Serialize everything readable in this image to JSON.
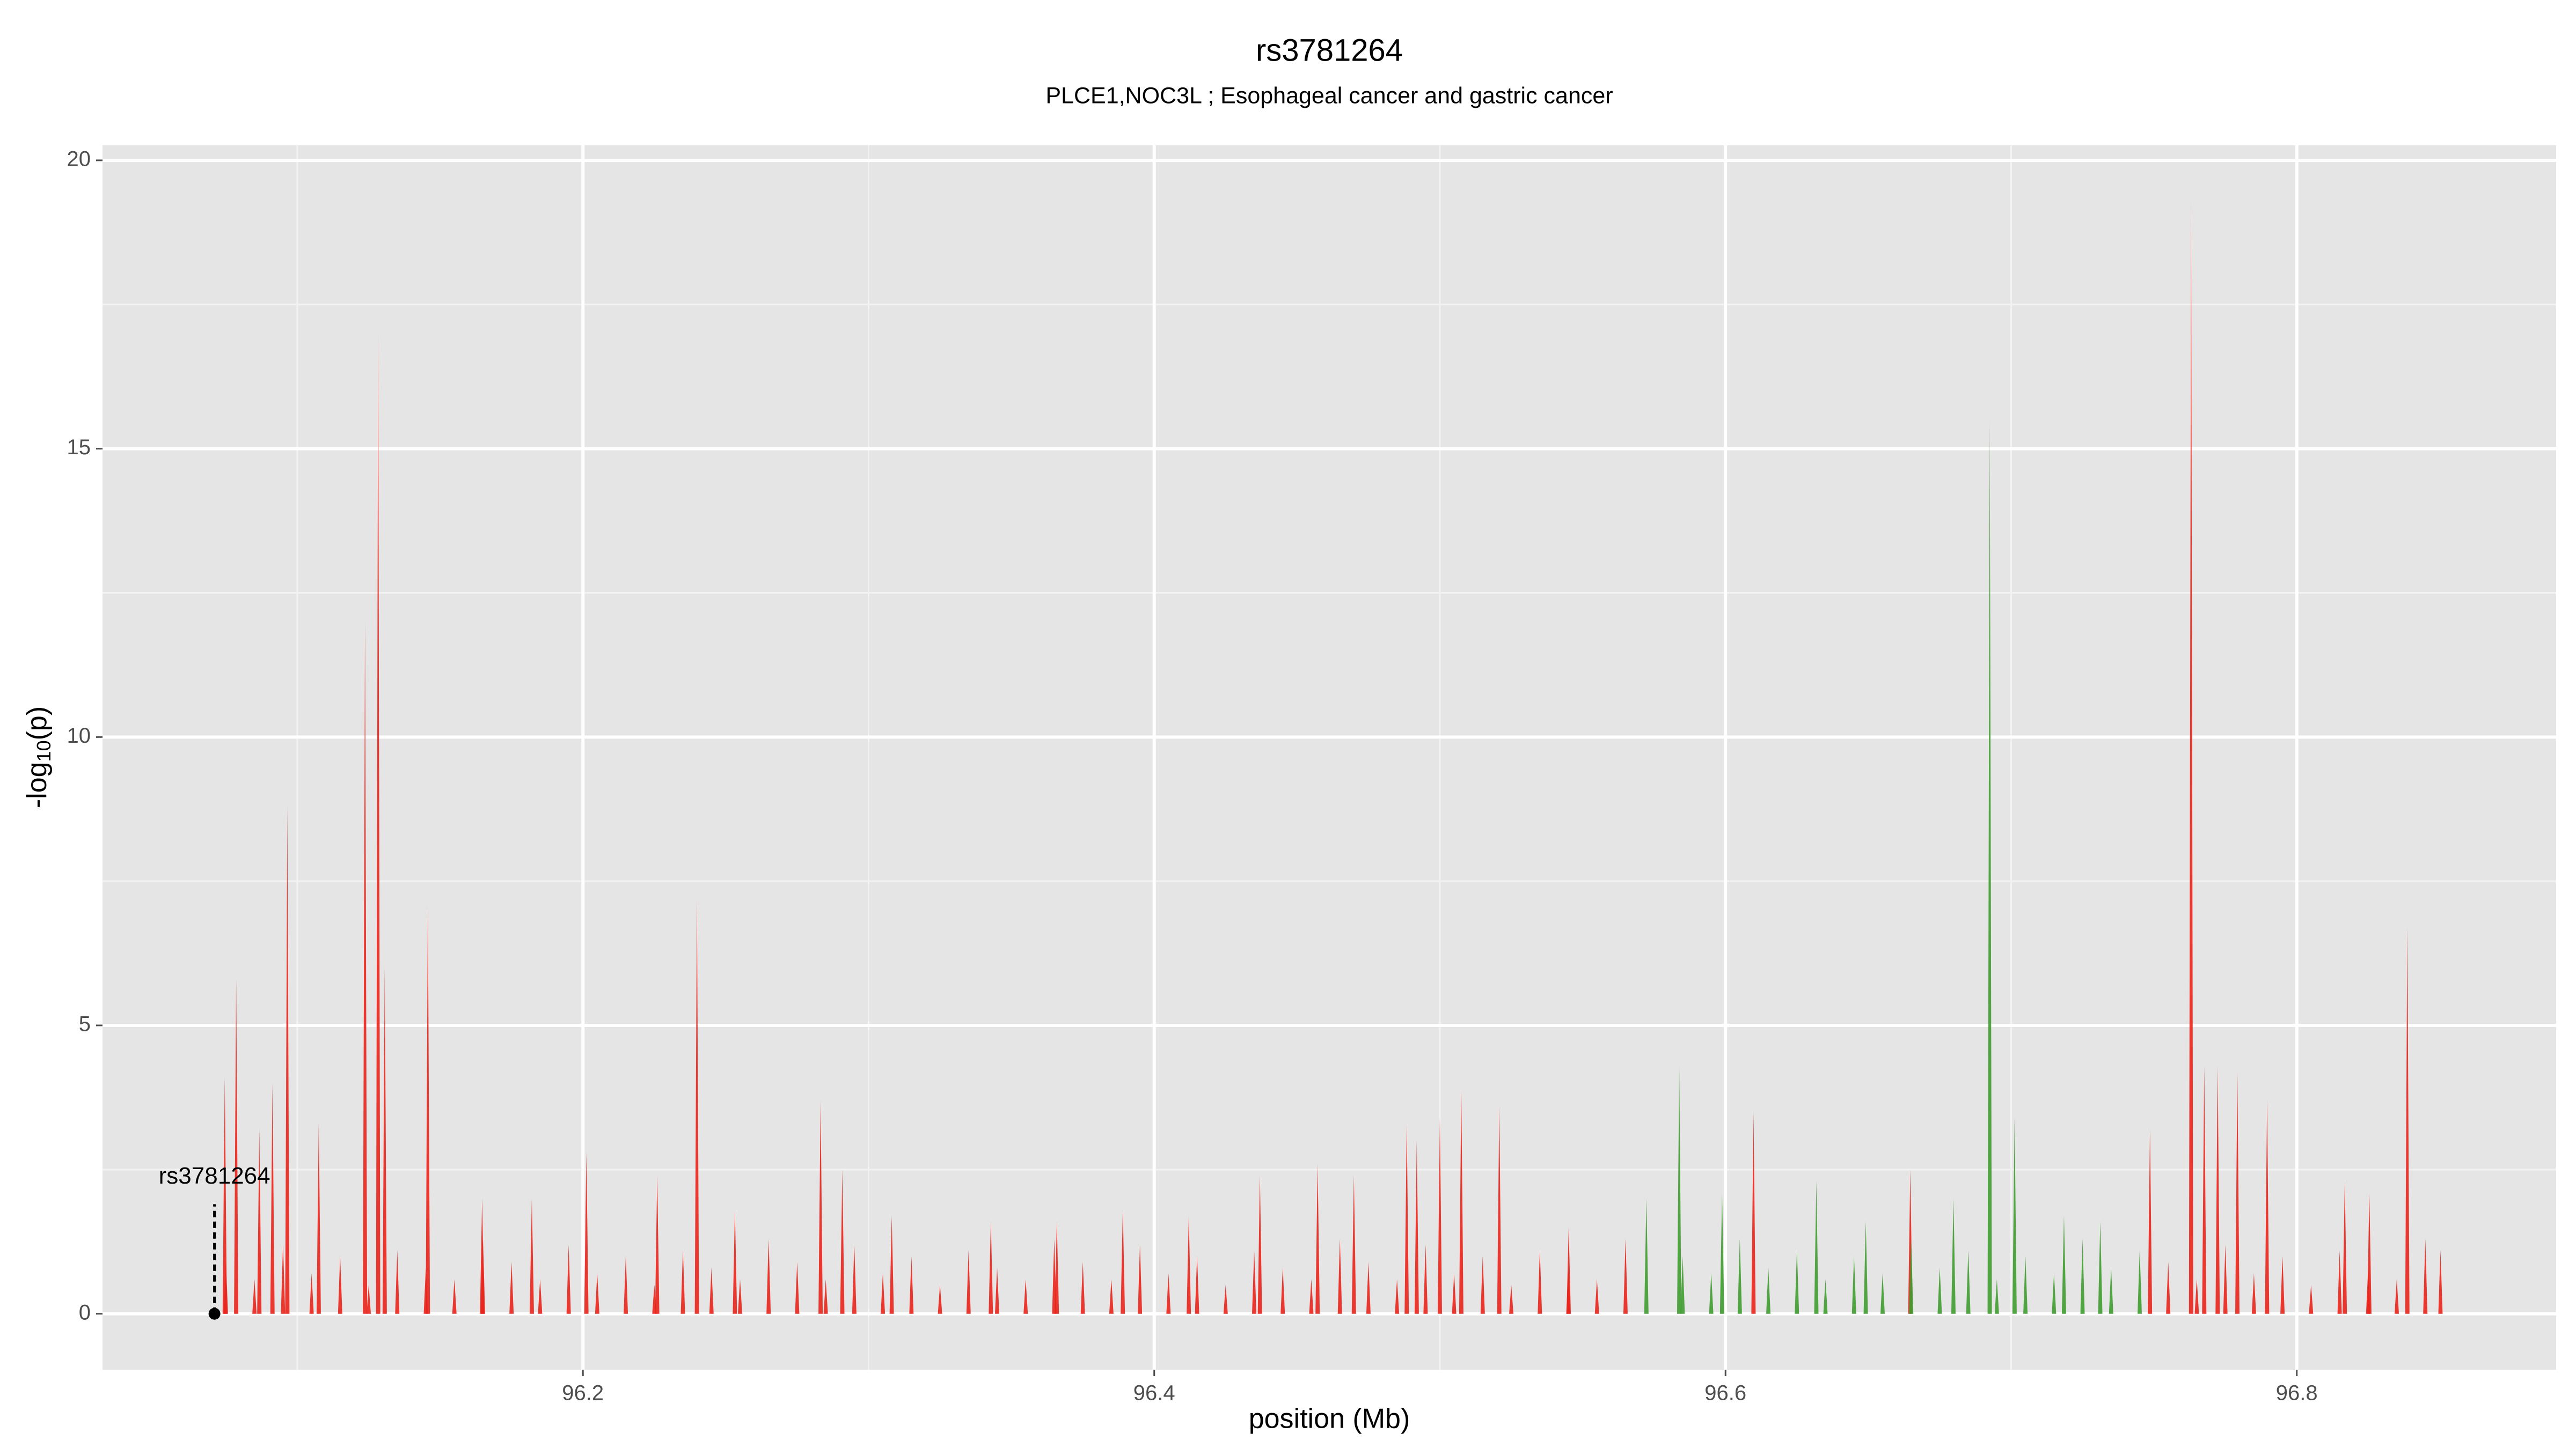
{
  "chart_data": {
    "type": "spike",
    "title": "rs3781264",
    "subtitle": "PLCE1,NOC3L ; Esophageal cancer and gastric cancer",
    "xlabel": "position (Mb)",
    "ylabel": {
      "prefix": "-log",
      "sub": "10",
      "suffix": "(p)"
    },
    "xlim": [
      96.0318,
      96.8908
    ],
    "ylim": [
      -0.97,
      20.26
    ],
    "xticks": [
      96.2,
      96.4,
      96.6,
      96.8
    ],
    "yticks": [
      0,
      5,
      10,
      15,
      20
    ],
    "xminor": [
      96.1,
      96.3,
      96.5,
      96.7
    ],
    "yminor": [
      2.5,
      7.5,
      12.5,
      17.5
    ],
    "grid": true,
    "annotation": {
      "label": "rs3781264",
      "x": 96.071,
      "y": 0,
      "line_top": 1.9
    },
    "series": [
      {
        "color": "#e8251c",
        "x": [
          96.0746,
          96.0786,
          96.0867,
          96.0913,
          96.0965,
          96.1075,
          96.1237,
          96.1283,
          96.1306,
          96.1457,
          96.1647,
          96.1821,
          96.2012,
          96.226,
          96.2399,
          96.2532,
          96.2832,
          96.2908,
          96.3081,
          96.3428,
          96.3659,
          96.389,
          96.4121,
          96.437,
          96.4572,
          96.4699,
          96.4884,
          96.4919,
          96.5,
          96.5075,
          96.5208,
          96.5451,
          96.6098,
          96.6647,
          96.7486,
          96.763,
          96.7676,
          96.7723,
          96.7792,
          96.7896,
          96.8168,
          96.8254,
          96.8387,
          96.8503,
          96.075,
          96.085,
          96.095,
          96.105,
          96.115,
          96.125,
          96.135,
          96.145,
          96.155,
          96.165,
          96.175,
          96.185,
          96.195,
          96.205,
          96.215,
          96.225,
          96.235,
          96.245,
          96.255,
          96.265,
          96.275,
          96.285,
          96.295,
          96.305,
          96.315,
          96.325,
          96.335,
          96.345,
          96.355,
          96.365,
          96.375,
          96.385,
          96.395,
          96.405,
          96.415,
          96.425,
          96.435,
          96.445,
          96.455,
          96.465,
          96.475,
          96.485,
          96.495,
          96.505,
          96.515,
          96.525,
          96.535,
          96.545,
          96.555,
          96.565,
          96.755,
          96.765,
          96.775,
          96.785,
          96.795,
          96.805,
          96.815,
          96.825,
          96.835,
          96.845
        ],
        "values": [
          4.1,
          5.8,
          3.2,
          4.0,
          8.8,
          3.3,
          12.0,
          17.0,
          6.0,
          7.1,
          2.0,
          2.0,
          2.8,
          2.4,
          7.2,
          1.8,
          3.7,
          2.5,
          1.7,
          1.6,
          1.6,
          1.8,
          1.7,
          2.4,
          2.6,
          2.4,
          3.3,
          3.0,
          3.4,
          3.9,
          3.6,
          1.5,
          3.5,
          2.5,
          3.2,
          19.3,
          4.3,
          4.3,
          4.2,
          3.7,
          2.3,
          2.1,
          6.7,
          1.1,
          0.9,
          0.6,
          1.2,
          0.7,
          1.0,
          0.5,
          1.1,
          0.8,
          0.6,
          1.3,
          0.9,
          0.6,
          1.2,
          0.7,
          1.0,
          0.5,
          1.1,
          0.8,
          0.6,
          1.3,
          0.9,
          0.6,
          1.2,
          0.7,
          1.0,
          0.5,
          1.1,
          0.8,
          0.6,
          1.3,
          0.9,
          0.6,
          1.2,
          0.7,
          1.0,
          0.5,
          1.1,
          0.8,
          0.6,
          1.3,
          0.9,
          0.6,
          1.2,
          0.7,
          1.0,
          0.5,
          1.1,
          0.8,
          0.6,
          1.3,
          0.9,
          0.6,
          1.2,
          0.7,
          1.0,
          0.5,
          1.1,
          0.8,
          0.6,
          1.3
        ]
      },
      {
        "color": "#3f9c2f",
        "x": [
          96.5723,
          96.5838,
          96.5988,
          96.6318,
          96.6491,
          96.6798,
          96.6925,
          96.7012,
          96.7185,
          96.7312,
          96.585,
          96.595,
          96.605,
          96.615,
          96.625,
          96.635,
          96.645,
          96.655,
          96.665,
          96.675,
          96.685,
          96.695,
          96.705,
          96.715,
          96.725,
          96.735,
          96.745
        ],
        "values": [
          2.0,
          4.3,
          2.1,
          2.3,
          1.6,
          2.0,
          15.5,
          3.4,
          1.7,
          1.6,
          1.0,
          0.7,
          1.3,
          0.8,
          1.1,
          0.6,
          1.0,
          0.7,
          1.3,
          0.8,
          1.1,
          0.6,
          1.0,
          0.7,
          1.3,
          0.8,
          1.1
        ]
      }
    ]
  }
}
